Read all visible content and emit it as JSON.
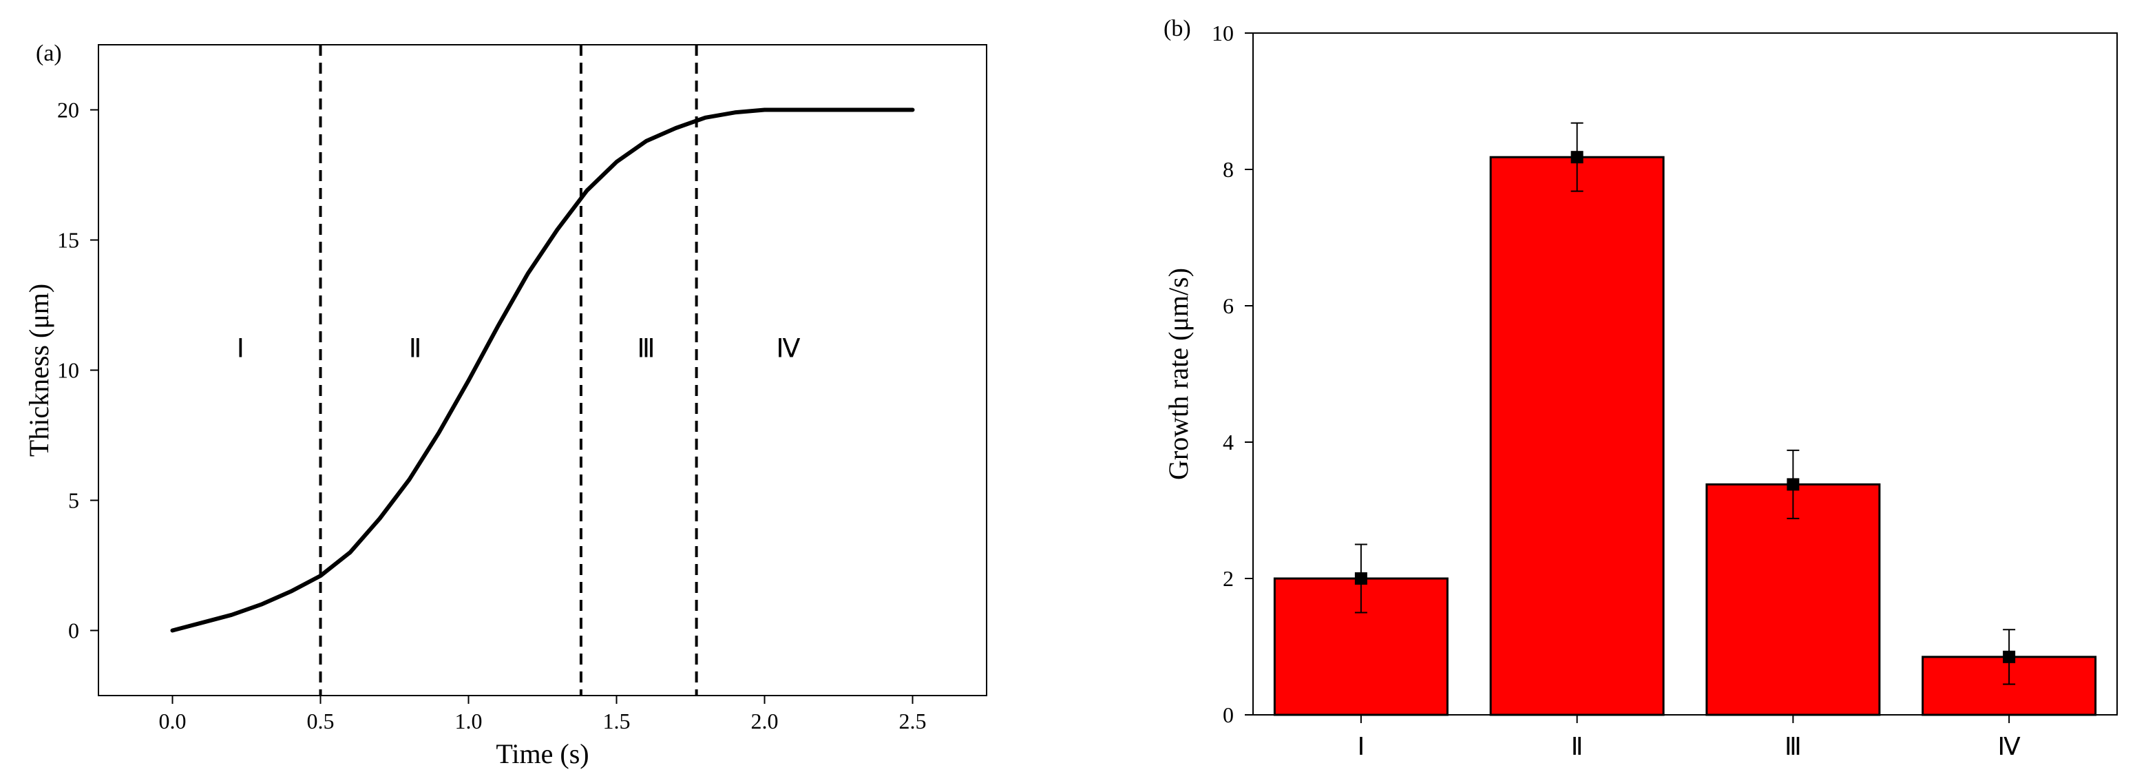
{
  "chart_data": [
    {
      "panel_label": "(a)",
      "type": "line",
      "xlabel": "Time (s)",
      "ylabel": "Thickness (μm)",
      "xlim": [
        -0.25,
        2.75
      ],
      "ylim": [
        -2.5,
        22.5
      ],
      "xticks": [
        "0.0",
        "0.5",
        "1.0",
        "1.5",
        "2.0",
        "2.5"
      ],
      "yticks": [
        "0",
        "5",
        "10",
        "15",
        "20"
      ],
      "line_color": "#000000",
      "series": [
        {
          "x": [
            0.0,
            0.1,
            0.2,
            0.3,
            0.4,
            0.5,
            0.6,
            0.7,
            0.8,
            0.9,
            1.0,
            1.1,
            1.2,
            1.3,
            1.4,
            1.5,
            1.6,
            1.7,
            1.8,
            1.9,
            2.0,
            2.1,
            2.2,
            2.3,
            2.4,
            2.5
          ],
          "y": [
            0.0,
            0.3,
            0.6,
            1.0,
            1.5,
            2.1,
            3.0,
            4.3,
            5.8,
            7.6,
            9.6,
            11.7,
            13.7,
            15.4,
            16.9,
            18.0,
            18.8,
            19.3,
            19.7,
            19.9,
            20.0,
            20.0,
            20.0,
            20.0,
            20.0,
            20.0
          ]
        }
      ],
      "dashed_vlines": [
        0.5,
        1.38,
        1.77
      ],
      "regions": [
        {
          "label": "Ⅰ",
          "x": 0.23
        },
        {
          "label": "Ⅱ",
          "x": 0.82
        },
        {
          "label": "Ⅲ",
          "x": 1.6
        },
        {
          "label": "Ⅳ",
          "x": 2.08
        }
      ],
      "region_label_y": 10.5
    },
    {
      "panel_label": "(b)",
      "type": "bar",
      "ylabel": "Growth rate  (μm/s)",
      "ylim": [
        0,
        10
      ],
      "yticks": [
        "0",
        "2",
        "4",
        "6",
        "8",
        "10"
      ],
      "categories": [
        "Ⅰ",
        "Ⅱ",
        "Ⅲ",
        "Ⅳ"
      ],
      "values": [
        2.0,
        8.18,
        3.38,
        0.85
      ],
      "errors": [
        0.5,
        0.5,
        0.5,
        0.4
      ],
      "bar_color": "#ff0000"
    }
  ]
}
